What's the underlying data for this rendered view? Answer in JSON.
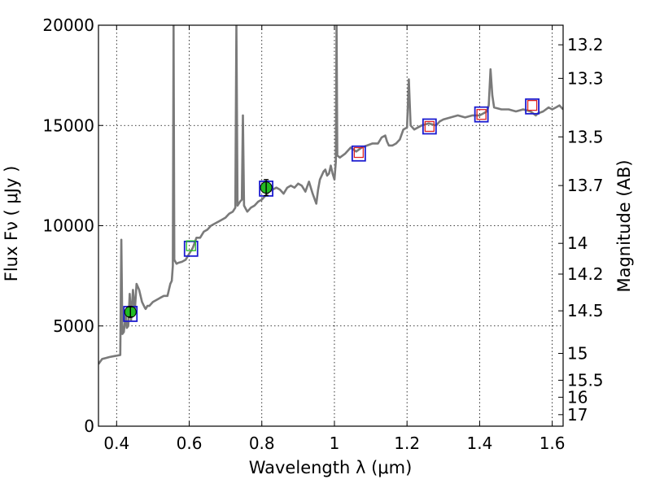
{
  "chart_data": {
    "type": "line",
    "title": "",
    "xlabel": "Wavelength  λ (μm)",
    "ylabel": "Flux  Fν  ( μJy )",
    "y2label": "Magnitude (AB)",
    "xlim": [
      0.35,
      1.63
    ],
    "ylim": [
      0,
      20000
    ],
    "grid": true,
    "x_ticks": [
      0.4,
      0.6,
      0.8,
      1.0,
      1.2,
      1.4,
      1.6
    ],
    "x_tick_labels": [
      "0.4",
      "0.6",
      "0.8",
      "1",
      "1.2",
      "1.4",
      "1.6"
    ],
    "y_ticks": [
      0,
      5000,
      10000,
      15000,
      20000
    ],
    "y_tick_labels": [
      "0",
      "5000",
      "10000",
      "15000",
      "20000"
    ],
    "mag_ticks": [
      {
        "flux": 19023,
        "label": "13.2"
      },
      {
        "flux": 17349,
        "label": "13.3"
      },
      {
        "flux": 14431,
        "label": "13.5"
      },
      {
        "flux": 12003,
        "label": "13.7"
      },
      {
        "flux": 9120,
        "label": "14"
      },
      {
        "flux": 7586,
        "label": "14.2"
      },
      {
        "flux": 5754,
        "label": "14.5"
      },
      {
        "flux": 3631,
        "label": "15"
      },
      {
        "flux": 2291,
        "label": "15.5"
      },
      {
        "flux": 1445,
        "label": "16"
      },
      {
        "flux": 575,
        "label": "17"
      }
    ],
    "series": [
      {
        "color": "#7a7a7a",
        "points": [
          [
            0.35,
            3100
          ],
          [
            0.36,
            3350
          ],
          [
            0.37,
            3400
          ],
          [
            0.38,
            3450
          ],
          [
            0.395,
            3500
          ],
          [
            0.41,
            3550
          ],
          [
            0.413,
            9300
          ],
          [
            0.416,
            4600
          ],
          [
            0.42,
            4700
          ],
          [
            0.425,
            5600
          ],
          [
            0.428,
            4900
          ],
          [
            0.432,
            5000
          ],
          [
            0.436,
            6600
          ],
          [
            0.44,
            5300
          ],
          [
            0.445,
            6800
          ],
          [
            0.45,
            5700
          ],
          [
            0.455,
            7100
          ],
          [
            0.462,
            6800
          ],
          [
            0.47,
            6200
          ],
          [
            0.474,
            6050
          ],
          [
            0.478,
            5900
          ],
          [
            0.48,
            5850
          ],
          [
            0.485,
            6000
          ],
          [
            0.49,
            6000
          ],
          [
            0.5,
            6200
          ],
          [
            0.51,
            6300
          ],
          [
            0.52,
            6400
          ],
          [
            0.53,
            6500
          ],
          [
            0.54,
            6500
          ],
          [
            0.548,
            7100
          ],
          [
            0.552,
            7250
          ],
          [
            0.555,
            8000
          ],
          [
            0.557,
            20000
          ],
          [
            0.559,
            8300
          ],
          [
            0.565,
            8100
          ],
          [
            0.57,
            8150
          ],
          [
            0.58,
            8200
          ],
          [
            0.59,
            8300
          ],
          [
            0.6,
            8600
          ],
          [
            0.61,
            8900
          ],
          [
            0.62,
            9400
          ],
          [
            0.63,
            9400
          ],
          [
            0.64,
            9700
          ],
          [
            0.65,
            9800
          ],
          [
            0.66,
            10000
          ],
          [
            0.67,
            10100
          ],
          [
            0.68,
            10200
          ],
          [
            0.69,
            10300
          ],
          [
            0.7,
            10400
          ],
          [
            0.71,
            10600
          ],
          [
            0.72,
            10700
          ],
          [
            0.727,
            10900
          ],
          [
            0.73,
            20000
          ],
          [
            0.733,
            11000
          ],
          [
            0.74,
            11200
          ],
          [
            0.745,
            11300
          ],
          [
            0.748,
            15500
          ],
          [
            0.751,
            11000
          ],
          [
            0.76,
            10700
          ],
          [
            0.77,
            10900
          ],
          [
            0.78,
            11000
          ],
          [
            0.79,
            11200
          ],
          [
            0.8,
            11300
          ],
          [
            0.81,
            11500
          ],
          [
            0.82,
            11700
          ],
          [
            0.83,
            11800
          ],
          [
            0.84,
            11900
          ],
          [
            0.85,
            11800
          ],
          [
            0.86,
            11600
          ],
          [
            0.87,
            11900
          ],
          [
            0.88,
            12000
          ],
          [
            0.89,
            11900
          ],
          [
            0.9,
            12100
          ],
          [
            0.91,
            12000
          ],
          [
            0.92,
            11700
          ],
          [
            0.93,
            12200
          ],
          [
            0.94,
            11600
          ],
          [
            0.95,
            11100
          ],
          [
            0.955,
            11800
          ],
          [
            0.96,
            12300
          ],
          [
            0.97,
            12700
          ],
          [
            0.975,
            12800
          ],
          [
            0.98,
            12500
          ],
          [
            0.985,
            12600
          ],
          [
            0.99,
            13000
          ],
          [
            0.995,
            12600
          ],
          [
            1.0,
            12300
          ],
          [
            1.004,
            13200
          ],
          [
            1.006,
            20000
          ],
          [
            1.008,
            13500
          ],
          [
            1.015,
            13400
          ],
          [
            1.03,
            13600
          ],
          [
            1.045,
            13900
          ],
          [
            1.06,
            13700
          ],
          [
            1.075,
            13900
          ],
          [
            1.09,
            14000
          ],
          [
            1.105,
            14100
          ],
          [
            1.12,
            14100
          ],
          [
            1.13,
            14400
          ],
          [
            1.14,
            14500
          ],
          [
            1.145,
            14200
          ],
          [
            1.15,
            14000
          ],
          [
            1.16,
            14000
          ],
          [
            1.17,
            14100
          ],
          [
            1.18,
            14300
          ],
          [
            1.19,
            14800
          ],
          [
            1.2,
            14900
          ],
          [
            1.205,
            17300
          ],
          [
            1.21,
            15000
          ],
          [
            1.22,
            14800
          ],
          [
            1.24,
            15000
          ],
          [
            1.26,
            15100
          ],
          [
            1.28,
            15000
          ],
          [
            1.29,
            15200
          ],
          [
            1.3,
            15300
          ],
          [
            1.32,
            15400
          ],
          [
            1.34,
            15500
          ],
          [
            1.36,
            15400
          ],
          [
            1.38,
            15500
          ],
          [
            1.4,
            15500
          ],
          [
            1.41,
            15600
          ],
          [
            1.42,
            15700
          ],
          [
            1.425,
            16000
          ],
          [
            1.43,
            17800
          ],
          [
            1.435,
            16500
          ],
          [
            1.44,
            15900
          ],
          [
            1.46,
            15800
          ],
          [
            1.48,
            15800
          ],
          [
            1.5,
            15700
          ],
          [
            1.52,
            15800
          ],
          [
            1.54,
            15700
          ],
          [
            1.555,
            15500
          ],
          [
            1.56,
            15600
          ],
          [
            1.575,
            15700
          ],
          [
            1.59,
            15900
          ],
          [
            1.6,
            15800
          ],
          [
            1.61,
            15900
          ],
          [
            1.62,
            16000
          ],
          [
            1.63,
            15800
          ]
        ]
      }
    ],
    "photometry": [
      {
        "x": 0.438,
        "y": 5700,
        "err": 250,
        "model": 5600,
        "marker": "filled-circle",
        "color": "#22bb22",
        "box_color": "#1b1bd0",
        "inner_color": "#22bb22"
      },
      {
        "x": 0.605,
        "y": 9000,
        "err": 0,
        "model": 8850,
        "marker": "open-square",
        "color": "#22bb22",
        "box_color": "#1b1bd0",
        "inner_color": "#22bb22"
      },
      {
        "x": 0.812,
        "y": 11900,
        "err": 400,
        "model": 11850,
        "marker": "filled-circle",
        "color": "#22bb22",
        "box_color": "#1b1bd0",
        "inner_color": "#22bb22"
      },
      {
        "x": 1.067,
        "y": 13650,
        "err": 0,
        "model": 13600,
        "marker": "open-square",
        "color": "#dd2222",
        "box_color": "#1b1bd0",
        "inner_color": "#dd2222"
      },
      {
        "x": 1.262,
        "y": 14950,
        "err": 0,
        "model": 14950,
        "marker": "open-square",
        "color": "#dd2222",
        "box_color": "#1b1bd0",
        "inner_color": "#dd2222"
      },
      {
        "x": 1.405,
        "y": 15550,
        "err": 0,
        "model": 15550,
        "marker": "open-square",
        "color": "#dd2222",
        "box_color": "#1b1bd0",
        "inner_color": "#dd2222"
      },
      {
        "x": 1.545,
        "y": 16000,
        "err": 0,
        "model": 15950,
        "marker": "open-square",
        "color": "#dd2222",
        "box_color": "#1b1bd0",
        "inner_color": "#dd2222"
      }
    ]
  }
}
